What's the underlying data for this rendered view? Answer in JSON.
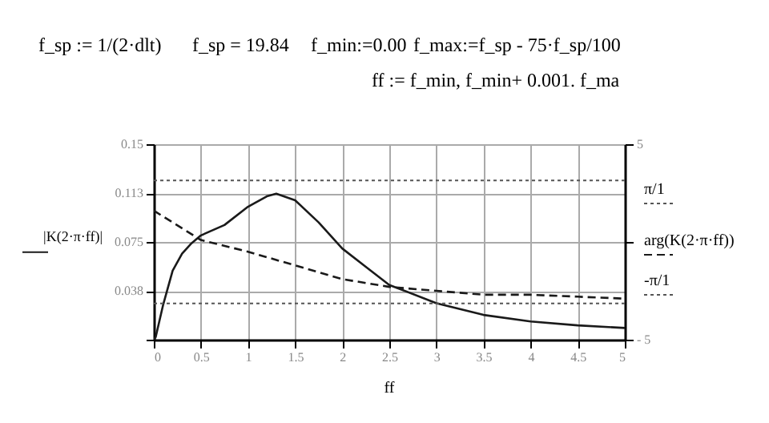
{
  "chart_data": {
    "type": "line",
    "annotations": [
      "f_sp := 1/(2·dlt)",
      "f_sp = 19.84",
      "f_min:=0.00",
      "f_max:=f_sp - 75·f_sp/100",
      "ff := f_min, f_min+ 0.001. f_ma"
    ],
    "xlabel": "ff",
    "ylabel": "|K(2·π·ff)|",
    "y2label": "arg(K(2·π·ff))",
    "xlim": [
      0,
      5
    ],
    "xticks": [
      0,
      0.5,
      1,
      1.5,
      2,
      2.5,
      3,
      3.5,
      4,
      4.5,
      5
    ],
    "ylim": [
      0,
      0.15
    ],
    "yticks": [
      {
        "value": 0,
        "label": null
      },
      {
        "value": 0.0375,
        "label": "0.038"
      },
      0.075,
      {
        "value": 0.1125,
        "label": "0.113"
      },
      0.15
    ],
    "y2lim": [
      -5,
      5
    ],
    "y2ticks": [
      {
        "value": -5,
        "label": "- 5"
      },
      {
        "value": 0,
        "label": null
      },
      5
    ],
    "grid": true,
    "legend": "right",
    "series": [
      {
        "color": "#1a1a1a",
        "line_style": "solid",
        "x": [
          0,
          0.02,
          0.1,
          0.2,
          0.3,
          0.4,
          0.5,
          0.75,
          1,
          1.2,
          1.3,
          1.5,
          1.75,
          2,
          2.25,
          2.5,
          3,
          3.5,
          4,
          4.5,
          5
        ],
        "values": [
          0,
          0.002,
          0.027,
          0.053,
          0.066,
          0.074,
          0.08,
          0.088,
          0.102,
          0.11,
          0.112,
          0.107,
          0.09,
          0.07,
          0.056,
          0.042,
          0.028,
          0.019,
          0.014,
          0.011,
          0.009
        ]
      },
      {
        "color": "#1a1a1a",
        "line_style": "dashed",
        "axis": "y2",
        "x": [
          0,
          0.5,
          1,
          1.5,
          2,
          2.5,
          3,
          3.5,
          4,
          4.5,
          5
        ],
        "values": [
          1.6,
          0.1,
          -0.5,
          -1.2,
          -1.9,
          -2.3,
          -2.5,
          -2.7,
          -2.7,
          -2.8,
          -2.9
        ]
      }
    ],
    "ref_lines": [
      {
        "axis": "y2",
        "value": 3.14159,
        "label": "π/1",
        "color": "#555555",
        "line_style": "dotted"
      },
      {
        "axis": "y2",
        "value": -3.14159,
        "label": "-π/1",
        "color": "#555555",
        "line_style": "dotted"
      }
    ]
  }
}
